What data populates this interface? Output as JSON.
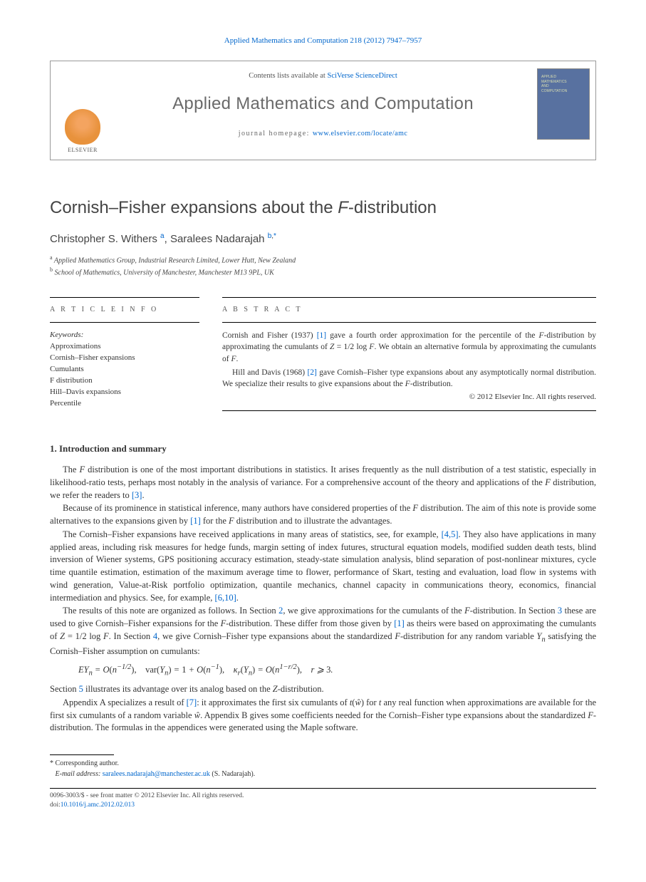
{
  "running_head": {
    "journal_link_text": "Applied Mathematics and Computation 218 (2012) 7947–7957",
    "journal_link_href": "#"
  },
  "masthead": {
    "elsevier_label": "ELSEVIER",
    "contents_prefix": "Contents lists available at ",
    "contents_link_text": "SciVerse ScienceDirect",
    "journal_title": "Applied Mathematics and Computation",
    "homepage_label": "journal homepage: ",
    "homepage_link_text": "www.elsevier.com/locate/amc",
    "cover_line1": "APPLIED",
    "cover_line2": "MATHEMATICS",
    "cover_line3": "AND",
    "cover_line4": "COMPUTATION"
  },
  "article": {
    "title_html": "Cornish–Fisher expansions about the <i>F</i>-distribution",
    "authors_html": "Christopher S. Withers <sup><a href=\"#\">a</a></sup>, Saralees Nadarajah <sup><a href=\"#\">b</a>,<a href=\"#\">*</a></sup>",
    "affiliations": [
      {
        "sup": "a",
        "text": "Applied Mathematics Group, Industrial Research Limited, Lower Hutt, New Zealand"
      },
      {
        "sup": "b",
        "text": "School of Mathematics, University of Manchester, Manchester M13 9PL, UK"
      }
    ]
  },
  "info": {
    "label": "A R T I C L E   I N F O",
    "keywords_label": "Keywords:",
    "keywords": [
      "Approximations",
      "Cornish–Fisher expansions",
      "Cumulants",
      "F distribution",
      "Hill–Davis expansions",
      "Percentile"
    ]
  },
  "abstract": {
    "label": "A B S T R A C T",
    "p1_html": "Cornish and Fisher (1937) <a href=\"#\">[1]</a> gave a fourth order approximation for the percentile of the <i>F</i>-distribution by approximating the cumulants of <i>Z</i> = 1/2 log <i>F</i>. We obtain an alternative formula by approximating the cumulants of <i>F</i>.",
    "p2_html": "Hill and Davis (1968) <a href=\"#\">[2]</a> gave Cornish–Fisher type expansions about any asymptotically normal distribution. We specialize their results to give expansions about the <i>F</i>-distribution.",
    "copyright": "© 2012 Elsevier Inc. All rights reserved."
  },
  "section1": {
    "heading": "1. Introduction and summary",
    "p1_html": "The <i>F</i> distribution is one of the most important distributions in statistics. It arises frequently as the null distribution of a test statistic, especially in likelihood-ratio tests, perhaps most notably in the analysis of variance. For a comprehensive account of the theory and applications of the <i>F</i> distribution, we refer the readers to <a href=\"#\">[3]</a>.",
    "p2_html": "Because of its prominence in statistical inference, many authors have considered properties of the <i>F</i> distribution. The aim of this note is provide some alternatives to the expansions given by <a href=\"#\">[1]</a> for the <i>F</i> distribution and to illustrate the advantages.",
    "p3_html": "The Cornish–Fisher expansions have received applications in many areas of statistics, see, for example, <a href=\"#\">[4,5]</a>. They also have applications in many applied areas, including risk measures for hedge funds, margin setting of index futures, structural equation models, modified sudden death tests, blind inversion of Wiener systems, GPS positioning accuracy estimation, steady-state simulation analysis, blind separation of post-nonlinear mixtures, cycle time quantile estimation, estimation of the maximum average time to flower, performance of Skart, testing and evaluation, load flow in systems with wind generation, Value-at-Risk portfolio optimization, quantile mechanics, channel capacity in communications theory, economics, financial intermediation and physics. See, for example, <a href=\"#\">[6,10]</a>.",
    "p4_html": "The results of this note are organized as follows. In Section <a href=\"#\">2</a>, we give approximations for the cumulants of the <i>F</i>-distribution. In Section <a href=\"#\">3</a> these are used to give Cornish–Fisher expansions for the <i>F</i>-distribution. These differ from those given by <a href=\"#\">[1]</a> as theirs were based on approximating the cumulants of <i>Z</i> = 1/2 log <i>F</i>. In Section <a href=\"#\">4</a>, we give Cornish–Fisher type expansions about the standardized <i>F</i>-distribution for any random variable <i>Y<sub>n</sub></i> satisfying the Cornish–Fisher assumption on cumulants:",
    "eqn_html": "EY<sub>n</sub> = O<span class=\"rm\">(</span>n<sup>−1/2</sup><span class=\"rm\">)</span>, &nbsp;&nbsp; <span class=\"rm\">var</span><span class=\"rm\">(</span>Y<sub>n</sub><span class=\"rm\">)</span> = <span class=\"rm\">1</span> + O<span class=\"rm\">(</span>n<sup>−1</sup><span class=\"rm\">)</span>, &nbsp;&nbsp; κ<sub>r</sub><span class=\"rm\">(</span>Y<sub>n</sub><span class=\"rm\">)</span> = O<span class=\"rm\">(</span>n<sup>1−r/2</sup><span class=\"rm\">)</span>, &nbsp;&nbsp; r ⩾ <span class=\"rm\">3</span>.",
    "p5_html": "Section <a href=\"#\">5</a> illustrates its advantage over its analog based on the <i>Z</i>-distribution.",
    "p6_html": "Appendix A specializes a result of <a href=\"#\">[7]</a>: it approximates the first six cumulants of <i>t</i>(<i>ŵ</i>) for <i>t</i> any real function when approximations are available for the first six cumulants of a random variable <i>ŵ</i>. Appendix B gives some coefficients needed for the Cornish–Fisher type expansions about the standardized <i>F</i>-distribution. The formulas in the appendices were generated using the Maple software."
  },
  "footnotes": {
    "corresponding": "* Corresponding author.",
    "email_label": "E-mail address:",
    "email_text": "saralees.nadarajah@manchester.ac.uk",
    "email_suffix": "(S. Nadarajah)."
  },
  "footer": {
    "line1": "0096-3003/$ - see front matter © 2012 Elsevier Inc. All rights reserved.",
    "doi_label": "doi:",
    "doi_text": "10.1016/j.amc.2012.02.013"
  }
}
